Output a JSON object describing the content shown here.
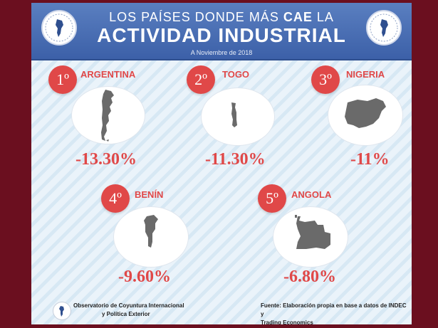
{
  "header": {
    "title_pre": "LOS PAÍSES DONDE MÁS",
    "title_bold": "CAE",
    "title_post": "LA",
    "title_main": "ACTIVIDAD INDUSTRIAL",
    "subtitle": "A Noviembre de 2018"
  },
  "colors": {
    "accent": "#e04848",
    "header_blue": "#3c60a8",
    "map_gray": "#6a6a6a"
  },
  "countries": [
    {
      "rank": "1º",
      "name": "ARGENTINA",
      "value": "-13.30%",
      "icon": "argentina-map-icon"
    },
    {
      "rank": "2º",
      "name": "TOGO",
      "value": "-11.30%",
      "icon": "togo-map-icon"
    },
    {
      "rank": "3º",
      "name": "NIGERIA",
      "value": "-11%",
      "icon": "nigeria-map-icon"
    },
    {
      "rank": "4º",
      "name": "BENÍN",
      "value": "-9.60%",
      "icon": "benin-map-icon"
    },
    {
      "rank": "5º",
      "name": "ANGOLA",
      "value": "-6.80%",
      "icon": "angola-map-icon"
    }
  ],
  "footer": {
    "org_line1": "Observatorio de Coyuntura Internacional",
    "org_line2": "y Política Exterior",
    "source_line1": "Fuente:  Elaboración propia en base a datos de INDEC y",
    "source_line2": "Trading Economics"
  }
}
